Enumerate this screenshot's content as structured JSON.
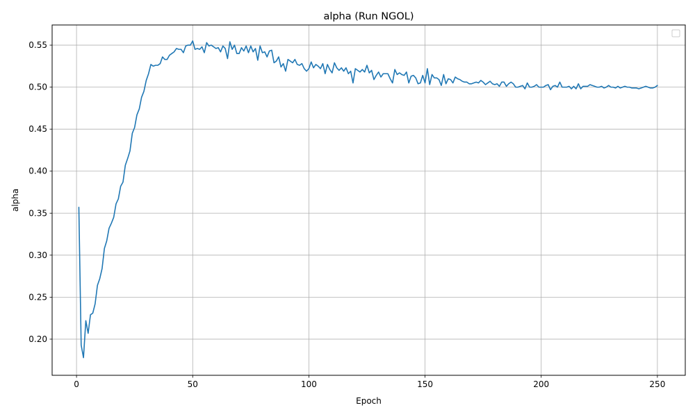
{
  "chart_data": {
    "type": "line",
    "title": "alpha (Run NGOL)",
    "xlabel": "Epoch",
    "ylabel": "alpha",
    "xlim": [
      -10.5,
      262
    ],
    "ylim": [
      0.157,
      0.574
    ],
    "xticks": [
      0,
      50,
      100,
      150,
      200,
      250
    ],
    "xtick_labels": [
      "0",
      "50",
      "100",
      "150",
      "200",
      "250"
    ],
    "yticks": [
      0.2,
      0.25,
      0.3,
      0.35,
      0.4,
      0.45,
      0.5,
      0.55
    ],
    "ytick_labels": [
      "0.20",
      "0.25",
      "0.30",
      "0.35",
      "0.40",
      "0.45",
      "0.50",
      "0.55"
    ],
    "grid": true,
    "legend": {
      "placement": "top-right",
      "entries": []
    },
    "line_color": "#1f77b4",
    "series": [
      {
        "x": [
          1,
          2,
          3,
          4,
          5,
          6,
          7,
          8,
          9,
          10,
          11,
          12,
          13,
          14,
          15,
          16,
          17,
          18,
          19,
          20,
          21,
          22,
          23,
          24,
          25,
          26,
          27,
          28,
          29,
          30,
          31,
          32,
          33,
          34,
          35,
          36,
          37,
          38,
          39,
          40,
          41,
          42,
          43,
          44,
          45,
          46,
          47,
          48,
          49,
          50,
          51,
          52,
          53,
          54,
          55,
          56,
          57,
          58,
          59,
          60,
          61,
          62,
          63,
          64,
          65,
          66,
          67,
          68,
          69,
          70,
          71,
          72,
          73,
          74,
          75,
          76,
          77,
          78,
          79,
          80,
          81,
          82,
          83,
          84,
          85,
          86,
          87,
          88,
          89,
          90,
          91,
          92,
          93,
          94,
          95,
          96,
          97,
          98,
          99,
          100,
          101,
          102,
          103,
          104,
          105,
          106,
          107,
          108,
          109,
          110,
          111,
          112,
          113,
          114,
          115,
          116,
          117,
          118,
          119,
          120,
          121,
          122,
          123,
          124,
          125,
          126,
          127,
          128,
          129,
          130,
          131,
          132,
          133,
          134,
          135,
          136,
          137,
          138,
          139,
          140,
          141,
          142,
          143,
          144,
          145,
          146,
          147,
          148,
          149,
          150,
          151,
          152,
          153,
          154,
          155,
          156,
          157,
          158,
          159,
          160,
          161,
          162,
          163,
          164,
          165,
          166,
          167,
          168,
          169,
          170,
          171,
          172,
          173,
          174,
          175,
          176,
          177,
          178,
          179,
          180,
          181,
          182,
          183,
          184,
          185,
          186,
          187,
          188,
          189,
          190,
          191,
          192,
          193,
          194,
          195,
          196,
          197,
          198,
          199,
          200,
          201,
          202,
          203,
          204,
          205,
          206,
          207,
          208,
          209,
          210,
          211,
          212,
          213,
          214,
          215,
          216,
          217,
          218,
          219,
          220,
          221,
          222,
          223,
          224,
          225,
          226,
          227,
          228,
          229,
          230,
          231,
          232,
          233,
          234,
          235,
          236,
          237,
          238,
          239,
          240,
          241,
          242,
          243,
          244,
          245,
          246,
          247,
          248,
          249,
          250
        ],
        "values": [
          0.357,
          0.193,
          0.178,
          0.222,
          0.207,
          0.229,
          0.231,
          0.242,
          0.264,
          0.272,
          0.284,
          0.308,
          0.317,
          0.332,
          0.338,
          0.345,
          0.361,
          0.367,
          0.382,
          0.387,
          0.407,
          0.415,
          0.424,
          0.445,
          0.452,
          0.467,
          0.474,
          0.488,
          0.495,
          0.508,
          0.516,
          0.527,
          0.525,
          0.526,
          0.526,
          0.528,
          0.536,
          0.533,
          0.533,
          0.538,
          0.54,
          0.542,
          0.546,
          0.545,
          0.545,
          0.541,
          0.549,
          0.55,
          0.55,
          0.555,
          0.545,
          0.546,
          0.545,
          0.548,
          0.541,
          0.553,
          0.549,
          0.55,
          0.548,
          0.546,
          0.547,
          0.542,
          0.549,
          0.546,
          0.534,
          0.554,
          0.545,
          0.55,
          0.54,
          0.54,
          0.547,
          0.543,
          0.549,
          0.541,
          0.549,
          0.542,
          0.546,
          0.532,
          0.549,
          0.541,
          0.542,
          0.536,
          0.543,
          0.544,
          0.529,
          0.531,
          0.536,
          0.524,
          0.528,
          0.519,
          0.533,
          0.531,
          0.529,
          0.533,
          0.527,
          0.526,
          0.528,
          0.522,
          0.519,
          0.522,
          0.53,
          0.523,
          0.527,
          0.525,
          0.522,
          0.528,
          0.516,
          0.527,
          0.521,
          0.517,
          0.529,
          0.523,
          0.52,
          0.523,
          0.519,
          0.523,
          0.516,
          0.519,
          0.505,
          0.522,
          0.52,
          0.518,
          0.521,
          0.518,
          0.526,
          0.517,
          0.52,
          0.509,
          0.514,
          0.518,
          0.512,
          0.516,
          0.516,
          0.516,
          0.51,
          0.505,
          0.521,
          0.515,
          0.517,
          0.515,
          0.514,
          0.518,
          0.505,
          0.513,
          0.514,
          0.511,
          0.504,
          0.505,
          0.514,
          0.505,
          0.522,
          0.503,
          0.515,
          0.511,
          0.511,
          0.509,
          0.502,
          0.515,
          0.504,
          0.51,
          0.509,
          0.505,
          0.512,
          0.51,
          0.509,
          0.507,
          0.506,
          0.506,
          0.504,
          0.504,
          0.505,
          0.506,
          0.505,
          0.508,
          0.506,
          0.503,
          0.505,
          0.507,
          0.504,
          0.503,
          0.504,
          0.501,
          0.506,
          0.506,
          0.501,
          0.504,
          0.506,
          0.504,
          0.5,
          0.5,
          0.501,
          0.502,
          0.498,
          0.505,
          0.5,
          0.5,
          0.501,
          0.503,
          0.5,
          0.5,
          0.5,
          0.502,
          0.503,
          0.497,
          0.501,
          0.502,
          0.5,
          0.506,
          0.5,
          0.5,
          0.5,
          0.501,
          0.498,
          0.501,
          0.498,
          0.504,
          0.498,
          0.501,
          0.501,
          0.501,
          0.503,
          0.502,
          0.501,
          0.5,
          0.5,
          0.501,
          0.499,
          0.5,
          0.502,
          0.5,
          0.5,
          0.499,
          0.501,
          0.499,
          0.5,
          0.501,
          0.5,
          0.5,
          0.499,
          0.499,
          0.499,
          0.498,
          0.499,
          0.5,
          0.501,
          0.5,
          0.499,
          0.499,
          0.5,
          0.502
        ]
      }
    ]
  }
}
